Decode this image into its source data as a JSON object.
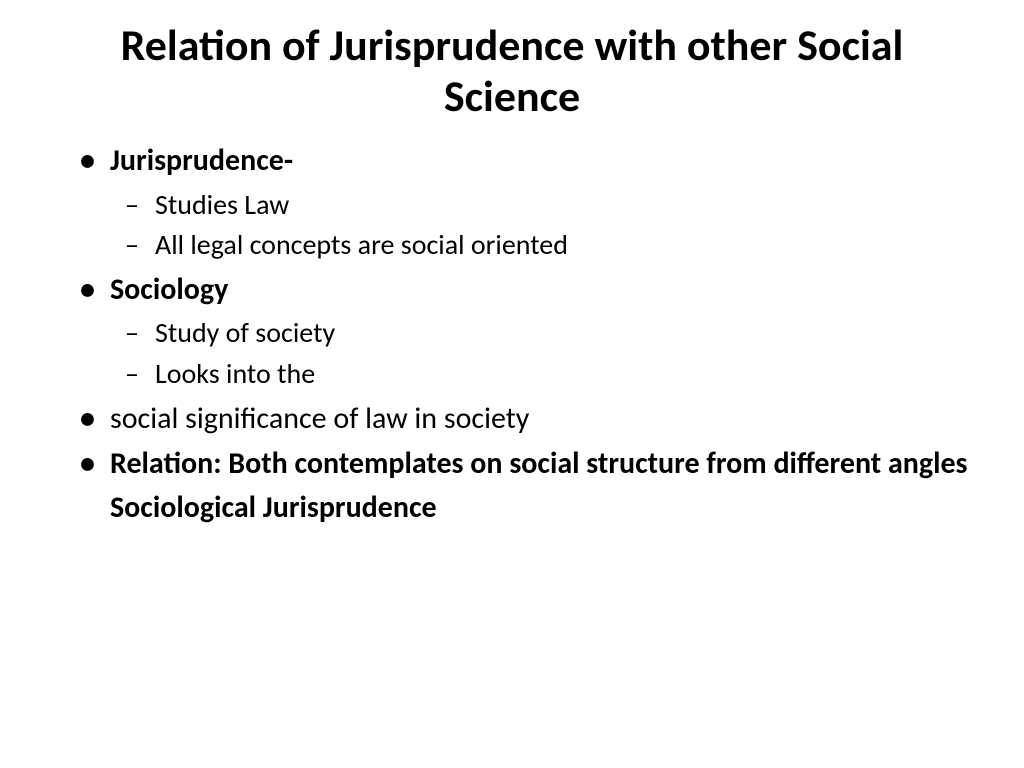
{
  "title": "Relation of Jurisprudence with other Social Science",
  "bullets": {
    "item1": {
      "label": "Jurisprudence-",
      "sub1": "Studies Law",
      "sub2": "All legal concepts are social oriented"
    },
    "item2": {
      "label": "Sociology",
      "sub1": "Study of society",
      "sub2": "Looks into the"
    },
    "item3": {
      "label": "social significance of law in society"
    },
    "item4": {
      "label": "Relation: Both contemplates on social structure from different angles Sociological Jurisprudence"
    }
  }
}
